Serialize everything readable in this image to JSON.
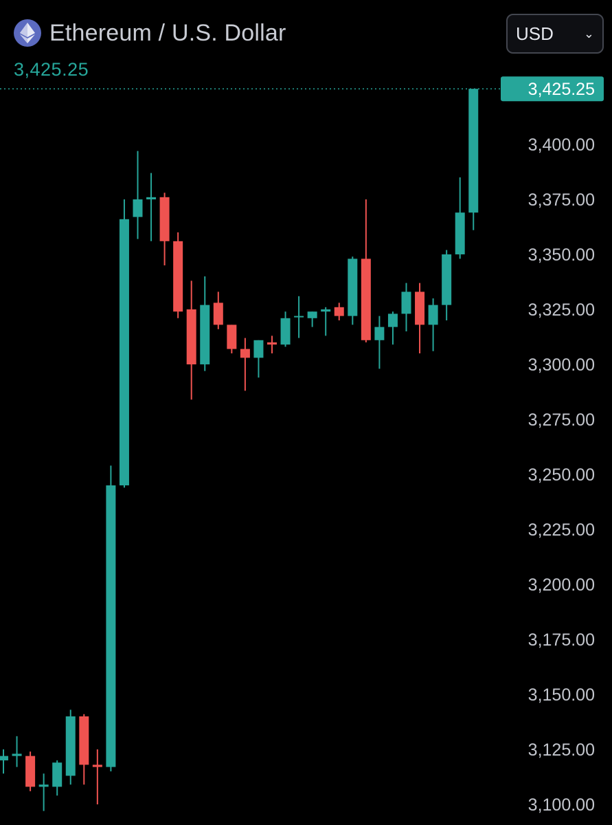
{
  "header": {
    "title": "Ethereum / U.S. Dollar",
    "last_price": "3,425.25",
    "icon": "ethereum-icon"
  },
  "currency_select": {
    "value": "USD",
    "icon": "chevron-down-icon"
  },
  "colors": {
    "up": "#26a69a",
    "down": "#ef5350",
    "background": "#000000",
    "axis_text": "#c2c5cc"
  },
  "chart_data": {
    "type": "candlestick",
    "y_axis": {
      "range": [
        3100,
        3430
      ],
      "ticks": [
        "3,100.00",
        "3,125.00",
        "3,150.00",
        "3,175.00",
        "3,200.00",
        "3,225.00",
        "3,250.00",
        "3,275.00",
        "3,300.00",
        "3,325.00",
        "3,350.00",
        "3,375.00",
        "3,400.00"
      ],
      "tick_values": [
        3100,
        3125,
        3150,
        3175,
        3200,
        3225,
        3250,
        3275,
        3300,
        3325,
        3350,
        3375,
        3400
      ],
      "side": "right"
    },
    "last_price": {
      "value": 3425.25,
      "label": "3,425.25"
    },
    "candles": [
      {
        "o": 3120,
        "h": 3125,
        "l": 3114,
        "c": 3122
      },
      {
        "o": 3122,
        "h": 3131,
        "l": 3117,
        "c": 3123
      },
      {
        "o": 3122,
        "h": 3124,
        "l": 3106,
        "c": 3108
      },
      {
        "o": 3108,
        "h": 3114,
        "l": 3097,
        "c": 3109
      },
      {
        "o": 3108,
        "h": 3120,
        "l": 3104,
        "c": 3119
      },
      {
        "o": 3113,
        "h": 3143,
        "l": 3109,
        "c": 3140
      },
      {
        "o": 3140,
        "h": 3141,
        "l": 3109,
        "c": 3118
      },
      {
        "o": 3118,
        "h": 3125,
        "l": 3100,
        "c": 3117
      },
      {
        "o": 3117,
        "h": 3254,
        "l": 3115,
        "c": 3245
      },
      {
        "o": 3245,
        "h": 3375,
        "l": 3244,
        "c": 3366
      },
      {
        "o": 3367,
        "h": 3397,
        "l": 3357,
        "c": 3375
      },
      {
        "o": 3375,
        "h": 3387,
        "l": 3356,
        "c": 3376
      },
      {
        "o": 3376,
        "h": 3378,
        "l": 3345,
        "c": 3356
      },
      {
        "o": 3356,
        "h": 3360,
        "l": 3321,
        "c": 3324
      },
      {
        "o": 3325,
        "h": 3338,
        "l": 3284,
        "c": 3300
      },
      {
        "o": 3300,
        "h": 3340,
        "l": 3297,
        "c": 3327
      },
      {
        "o": 3328,
        "h": 3333,
        "l": 3316,
        "c": 3318
      },
      {
        "o": 3318,
        "h": 3318,
        "l": 3305,
        "c": 3307
      },
      {
        "o": 3307,
        "h": 3312,
        "l": 3288,
        "c": 3303
      },
      {
        "o": 3303,
        "h": 3311,
        "l": 3294,
        "c": 3311
      },
      {
        "o": 3310,
        "h": 3313,
        "l": 3305,
        "c": 3309
      },
      {
        "o": 3309,
        "h": 3324,
        "l": 3308,
        "c": 3321
      },
      {
        "o": 3322,
        "h": 3331,
        "l": 3312,
        "c": 3322
      },
      {
        "o": 3321,
        "h": 3324,
        "l": 3317,
        "c": 3324
      },
      {
        "o": 3324,
        "h": 3326,
        "l": 3313,
        "c": 3325
      },
      {
        "o": 3326,
        "h": 3328,
        "l": 3320,
        "c": 3322
      },
      {
        "o": 3322,
        "h": 3349,
        "l": 3318,
        "c": 3348
      },
      {
        "o": 3348,
        "h": 3375,
        "l": 3310,
        "c": 3311
      },
      {
        "o": 3311,
        "h": 3322,
        "l": 3298,
        "c": 3317
      },
      {
        "o": 3317,
        "h": 3324,
        "l": 3309,
        "c": 3323
      },
      {
        "o": 3323,
        "h": 3337,
        "l": 3315,
        "c": 3333
      },
      {
        "o": 3333,
        "h": 3337,
        "l": 3305,
        "c": 3318
      },
      {
        "o": 3318,
        "h": 3330,
        "l": 3306,
        "c": 3327
      },
      {
        "o": 3327,
        "h": 3352,
        "l": 3320,
        "c": 3350
      },
      {
        "o": 3350,
        "h": 3385,
        "l": 3348,
        "c": 3369
      },
      {
        "o": 3369,
        "h": 3425.25,
        "l": 3361,
        "c": 3425.25
      }
    ]
  }
}
